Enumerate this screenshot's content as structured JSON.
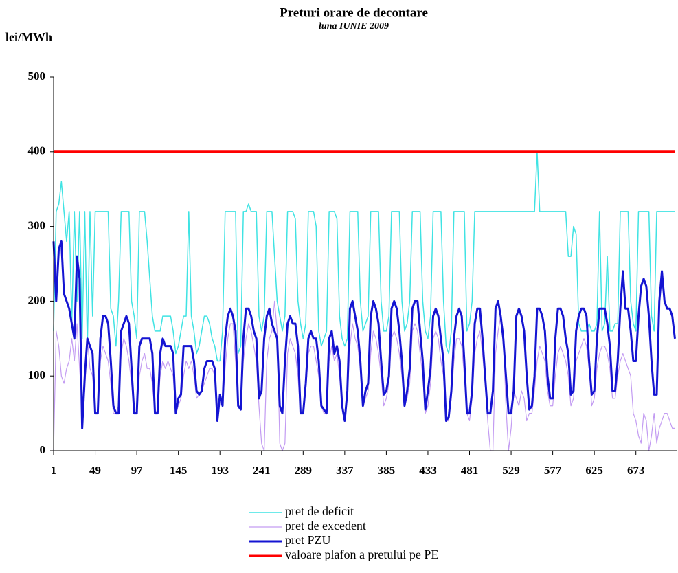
{
  "chart_data": {
    "type": "line",
    "title": "Preturi orare de decontare",
    "subtitle": "luna IUNIE 2009",
    "y_label": "lei/MWh",
    "xlim": [
      1,
      720
    ],
    "xticks": [
      1,
      49,
      97,
      145,
      193,
      241,
      289,
      337,
      385,
      433,
      481,
      529,
      577,
      625,
      673
    ],
    "ylim": [
      0,
      500
    ],
    "yticks": [
      0,
      100,
      200,
      300,
      400,
      500
    ],
    "grid": false,
    "legend": "bottom",
    "x": [
      1,
      4,
      7,
      10,
      13,
      16,
      19,
      22,
      25,
      28,
      31,
      34,
      37,
      40,
      43,
      46,
      49,
      52,
      55,
      58,
      61,
      64,
      67,
      70,
      73,
      76,
      79,
      82,
      85,
      88,
      91,
      94,
      97,
      100,
      103,
      106,
      109,
      112,
      115,
      118,
      121,
      124,
      127,
      130,
      133,
      136,
      139,
      142,
      145,
      148,
      151,
      154,
      157,
      160,
      163,
      166,
      169,
      172,
      175,
      178,
      181,
      184,
      187,
      190,
      193,
      196,
      199,
      202,
      205,
      208,
      211,
      214,
      217,
      220,
      223,
      226,
      229,
      232,
      235,
      238,
      241,
      244,
      247,
      250,
      253,
      256,
      259,
      262,
      265,
      268,
      271,
      274,
      277,
      280,
      283,
      286,
      289,
      292,
      295,
      298,
      301,
      304,
      307,
      310,
      313,
      316,
      319,
      322,
      325,
      328,
      331,
      334,
      337,
      340,
      343,
      346,
      349,
      352,
      355,
      358,
      361,
      364,
      367,
      370,
      373,
      376,
      379,
      382,
      385,
      388,
      391,
      394,
      397,
      400,
      403,
      406,
      409,
      412,
      415,
      418,
      421,
      424,
      427,
      430,
      433,
      436,
      439,
      442,
      445,
      448,
      451,
      454,
      457,
      460,
      463,
      466,
      469,
      472,
      475,
      478,
      481,
      484,
      487,
      490,
      493,
      496,
      499,
      502,
      505,
      508,
      511,
      514,
      517,
      520,
      523,
      526,
      529,
      532,
      535,
      538,
      541,
      544,
      547,
      550,
      553,
      556,
      559,
      562,
      565,
      568,
      571,
      574,
      577,
      580,
      583,
      586,
      589,
      592,
      595,
      598,
      601,
      604,
      607,
      610,
      613,
      616,
      619,
      622,
      625,
      628,
      631,
      634,
      637,
      640,
      643,
      646,
      649,
      652,
      655,
      658,
      661,
      664,
      667,
      670,
      673,
      676,
      679,
      682,
      685,
      688,
      691,
      694,
      697,
      700,
      703,
      706,
      709,
      712,
      715,
      718
    ],
    "series": [
      {
        "name": "pret de deficit",
        "color": "#3fe3e3",
        "width": 1.5,
        "values": [
          160,
          320,
          330,
          360,
          320,
          280,
          320,
          170,
          320,
          200,
          320,
          150,
          320,
          140,
          320,
          180,
          320,
          320,
          320,
          320,
          320,
          320,
          190,
          180,
          140,
          200,
          320,
          320,
          320,
          320,
          200,
          180,
          150,
          320,
          320,
          320,
          280,
          230,
          180,
          160,
          160,
          160,
          180,
          180,
          180,
          180,
          160,
          130,
          140,
          160,
          180,
          180,
          320,
          180,
          160,
          130,
          140,
          160,
          180,
          180,
          170,
          150,
          140,
          120,
          120,
          160,
          320,
          320,
          320,
          320,
          320,
          130,
          140,
          320,
          320,
          330,
          320,
          320,
          320,
          180,
          160,
          180,
          320,
          320,
          320,
          260,
          200,
          180,
          160,
          180,
          320,
          320,
          320,
          310,
          200,
          170,
          150,
          170,
          320,
          320,
          320,
          300,
          160,
          140,
          150,
          160,
          320,
          320,
          320,
          310,
          180,
          150,
          140,
          150,
          320,
          320,
          320,
          320,
          200,
          160,
          170,
          180,
          320,
          320,
          320,
          320,
          200,
          160,
          160,
          180,
          320,
          320,
          320,
          320,
          200,
          160,
          170,
          200,
          320,
          320,
          320,
          320,
          200,
          160,
          150,
          180,
          320,
          320,
          320,
          320,
          200,
          140,
          130,
          160,
          320,
          320,
          320,
          320,
          320,
          160,
          170,
          200,
          320,
          320,
          320,
          320,
          320,
          320,
          320,
          320,
          320,
          320,
          320,
          320,
          320,
          320,
          320,
          320,
          320,
          320,
          320,
          320,
          320,
          320,
          320,
          320,
          400,
          320,
          320,
          320,
          320,
          320,
          320,
          320,
          320,
          320,
          320,
          320,
          260,
          260,
          300,
          290,
          170,
          160,
          160,
          160,
          170,
          160,
          160,
          170,
          320,
          160,
          170,
          260,
          160,
          160,
          170,
          170,
          320,
          320,
          320,
          320,
          200,
          170,
          160,
          320,
          320,
          320,
          320,
          320,
          180,
          160,
          320,
          320,
          320,
          320,
          320,
          320,
          320,
          320
        ]
      },
      {
        "name": "pret de excedent",
        "color": "#c39cf2",
        "width": 1.2,
        "values": [
          0,
          160,
          140,
          100,
          90,
          110,
          120,
          150,
          120,
          170,
          110,
          60,
          80,
          150,
          110,
          100,
          50,
          50,
          120,
          140,
          130,
          120,
          90,
          50,
          50,
          60,
          130,
          150,
          140,
          120,
          90,
          50,
          50,
          100,
          120,
          130,
          110,
          110,
          90,
          50,
          55,
          100,
          120,
          110,
          120,
          110,
          100,
          50,
          60,
          70,
          100,
          120,
          110,
          120,
          100,
          70,
          75,
          80,
          90,
          100,
          110,
          110,
          100,
          60,
          70,
          60,
          110,
          150,
          170,
          170,
          120,
          60,
          60,
          120,
          150,
          170,
          160,
          140,
          120,
          60,
          10,
          0,
          120,
          150,
          160,
          200,
          160,
          10,
          0,
          10,
          130,
          150,
          140,
          130,
          100,
          50,
          50,
          80,
          130,
          140,
          140,
          120,
          100,
          60,
          50,
          50,
          120,
          140,
          120,
          130,
          100,
          60,
          40,
          70,
          140,
          170,
          150,
          140,
          110,
          60,
          70,
          80,
          130,
          160,
          150,
          130,
          100,
          60,
          70,
          90,
          150,
          160,
          150,
          130,
          100,
          60,
          70,
          90,
          160,
          170,
          160,
          130,
          100,
          50,
          60,
          90,
          150,
          160,
          150,
          120,
          100,
          40,
          40,
          70,
          120,
          150,
          150,
          140,
          100,
          50,
          40,
          70,
          130,
          150,
          160,
          130,
          90,
          40,
          0,
          0,
          130,
          160,
          180,
          160,
          60,
          0,
          30,
          80,
          70,
          60,
          80,
          70,
          40,
          50,
          50,
          80,
          120,
          140,
          130,
          120,
          80,
          60,
          60,
          100,
          130,
          140,
          130,
          120,
          100,
          60,
          70,
          120,
          130,
          140,
          150,
          140,
          110,
          60,
          70,
          110,
          130,
          140,
          140,
          130,
          110,
          70,
          70,
          100,
          120,
          130,
          120,
          110,
          100,
          50,
          40,
          20,
          10,
          50,
          40,
          0,
          20,
          50,
          10,
          30,
          40,
          50,
          50,
          40,
          30,
          30
        ]
      },
      {
        "name": "pret PZU",
        "color": "#1414d2",
        "width": 3,
        "values": [
          280,
          200,
          270,
          280,
          210,
          200,
          190,
          170,
          150,
          260,
          230,
          30,
          100,
          150,
          140,
          130,
          50,
          50,
          150,
          180,
          180,
          170,
          120,
          60,
          50,
          50,
          160,
          170,
          180,
          170,
          110,
          50,
          50,
          140,
          150,
          150,
          150,
          150,
          130,
          50,
          50,
          130,
          150,
          140,
          140,
          140,
          130,
          50,
          70,
          75,
          140,
          140,
          140,
          140,
          120,
          80,
          75,
          80,
          110,
          120,
          120,
          120,
          110,
          40,
          75,
          60,
          150,
          180,
          190,
          180,
          160,
          60,
          55,
          150,
          190,
          190,
          180,
          160,
          150,
          70,
          80,
          150,
          180,
          190,
          170,
          160,
          150,
          60,
          50,
          120,
          170,
          180,
          170,
          170,
          140,
          50,
          50,
          90,
          150,
          160,
          150,
          150,
          120,
          60,
          55,
          50,
          150,
          160,
          130,
          140,
          120,
          60,
          40,
          80,
          190,
          200,
          180,
          160,
          120,
          60,
          80,
          90,
          180,
          200,
          190,
          170,
          120,
          75,
          80,
          100,
          190,
          200,
          190,
          160,
          120,
          60,
          80,
          110,
          190,
          200,
          200,
          160,
          120,
          55,
          80,
          110,
          180,
          190,
          180,
          150,
          120,
          40,
          45,
          80,
          150,
          180,
          190,
          180,
          120,
          50,
          50,
          80,
          170,
          190,
          190,
          150,
          100,
          50,
          50,
          80,
          190,
          200,
          180,
          150,
          100,
          50,
          50,
          80,
          180,
          190,
          180,
          160,
          100,
          55,
          60,
          100,
          190,
          190,
          180,
          160,
          100,
          70,
          70,
          150,
          190,
          190,
          180,
          150,
          130,
          75,
          80,
          160,
          180,
          190,
          190,
          180,
          120,
          75,
          80,
          150,
          190,
          190,
          190,
          170,
          140,
          80,
          80,
          120,
          190,
          240,
          190,
          190,
          160,
          120,
          120,
          180,
          220,
          230,
          220,
          180,
          120,
          75,
          75,
          200,
          240,
          200,
          190,
          190,
          180,
          150
        ]
      },
      {
        "name": "valoare plafon a pretului pe PE",
        "color": "#ff0000",
        "width": 3,
        "values": [
          400,
          400,
          400,
          400,
          400,
          400,
          400,
          400,
          400,
          400,
          400,
          400,
          400,
          400,
          400,
          400,
          400,
          400,
          400,
          400,
          400,
          400,
          400,
          400,
          400,
          400,
          400,
          400,
          400,
          400,
          400,
          400,
          400,
          400,
          400,
          400,
          400,
          400,
          400,
          400,
          400,
          400,
          400,
          400,
          400,
          400,
          400,
          400,
          400,
          400,
          400,
          400,
          400,
          400,
          400,
          400,
          400,
          400,
          400,
          400,
          400,
          400,
          400,
          400,
          400,
          400,
          400,
          400,
          400,
          400,
          400,
          400,
          400,
          400,
          400,
          400,
          400,
          400,
          400,
          400,
          400,
          400,
          400,
          400,
          400,
          400,
          400,
          400,
          400,
          400,
          400,
          400,
          400,
          400,
          400,
          400,
          400,
          400,
          400,
          400,
          400,
          400,
          400,
          400,
          400,
          400,
          400,
          400,
          400,
          400,
          400,
          400,
          400,
          400,
          400,
          400,
          400,
          400,
          400,
          400,
          400,
          400,
          400,
          400,
          400,
          400,
          400,
          400,
          400,
          400,
          400,
          400,
          400,
          400,
          400,
          400,
          400,
          400,
          400,
          400,
          400,
          400,
          400,
          400,
          400,
          400,
          400,
          400,
          400,
          400,
          400,
          400,
          400,
          400,
          400,
          400,
          400,
          400,
          400,
          400,
          400,
          400,
          400,
          400,
          400,
          400,
          400,
          400,
          400,
          400,
          400,
          400,
          400,
          400,
          400,
          400,
          400,
          400,
          400,
          400,
          400,
          400,
          400,
          400,
          400,
          400,
          400,
          400,
          400,
          400,
          400,
          400,
          400,
          400,
          400,
          400,
          400,
          400,
          400,
          400,
          400,
          400,
          400,
          400,
          400,
          400,
          400,
          400,
          400,
          400,
          400,
          400,
          400,
          400,
          400,
          400,
          400,
          400,
          400,
          400,
          400,
          400,
          400,
          400,
          400,
          400,
          400,
          400,
          400,
          400,
          400,
          400,
          400,
          400,
          400,
          400,
          400,
          400,
          400,
          400
        ]
      }
    ]
  }
}
